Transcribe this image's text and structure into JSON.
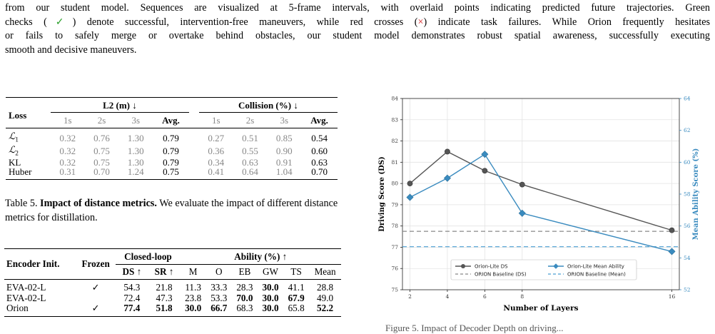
{
  "caption_top": {
    "line1": "from our student model. Sequences are visualized at 5-frame intervals, with overlaid points indicating predicted future trajectories. Green",
    "line2_a": "checks (",
    "check_glyph": "✓",
    "line2_b": ") denote successful, intervention-free maneuvers, while red crosses (",
    "cross_glyph": "×",
    "line2_c": ") indicate task failures. While Orion frequently hesitates",
    "line3": "or fails to safely merge or overtake behind obstacles, our student model demonstrates robust spatial awareness, successfully executing",
    "line4": "smooth and decisive maneuvers.",
    "check_color": "#2ca02c",
    "cross_color": "#d62728"
  },
  "table5": {
    "col_loss": "Loss",
    "group_l2": "L2 (m) ↓",
    "group_collision": "Collision (%) ↓",
    "subcols": [
      "1s",
      "2s",
      "3s",
      "Avg.",
      "1s",
      "2s",
      "3s",
      "Avg."
    ],
    "rows": [
      {
        "loss_sym": "ℒ",
        "loss_sub": "1",
        "vals": [
          "0.32",
          "0.76",
          "1.30",
          "0.79",
          "0.27",
          "0.51",
          "0.85",
          "0.54"
        ]
      },
      {
        "loss_sym": "ℒ",
        "loss_sub": "2",
        "vals": [
          "0.32",
          "0.75",
          "1.30",
          "0.79",
          "0.36",
          "0.55",
          "0.90",
          "0.60"
        ]
      },
      {
        "loss_sym": "KL",
        "loss_sub": "",
        "vals": [
          "0.32",
          "0.75",
          "1.30",
          "0.79",
          "0.34",
          "0.63",
          "0.91",
          "0.63"
        ]
      },
      {
        "loss_sym": "Huber",
        "loss_sub": "",
        "vals": [
          "0.31",
          "0.70",
          "1.24",
          "0.75",
          "0.41",
          "0.64",
          "1.04",
          "0.70"
        ]
      }
    ],
    "caption_label": "Table 5.",
    "caption_bold": "Impact of distance metrics.",
    "caption_rest": " We evaluate the impact of different distance metrics for distillation."
  },
  "table6": {
    "col_encoder": "Encoder Init.",
    "col_frozen": "Frozen",
    "group_closed": "Closed-loop",
    "group_ability": "Ability (%) ↑",
    "subcols": [
      "DS ↑",
      "SR ↑",
      "M",
      "O",
      "EB",
      "GW",
      "TS",
      "Mean"
    ],
    "rows": [
      {
        "encoder": "EVA-02-L",
        "frozen": "✓",
        "vals": [
          "54.3",
          "21.8",
          "11.3",
          "33.3",
          "28.3",
          "30.0",
          "41.1",
          "28.8"
        ],
        "bold": [
          false,
          false,
          false,
          false,
          false,
          true,
          false,
          false
        ]
      },
      {
        "encoder": "EVA-02-L",
        "frozen": "",
        "vals": [
          "72.4",
          "47.3",
          "23.8",
          "53.3",
          "70.0",
          "30.0",
          "67.9",
          "49.0"
        ],
        "bold": [
          false,
          false,
          false,
          false,
          true,
          true,
          true,
          false
        ]
      },
      {
        "encoder": "Orion",
        "frozen": "✓",
        "vals": [
          "77.4",
          "51.8",
          "30.0",
          "66.7",
          "68.3",
          "30.0",
          "65.8",
          "52.2"
        ],
        "bold": [
          true,
          true,
          true,
          true,
          false,
          true,
          false,
          true
        ]
      }
    ]
  },
  "chart_data": {
    "type": "line",
    "xlabel": "Number of Layers",
    "ylabel": "Driving Score (DS)",
    "ylabel_right": "Mean Ability Score (%)",
    "x": [
      2,
      4,
      6,
      8,
      16
    ],
    "x_ticks": [
      "2",
      "4",
      "6",
      "8",
      "16"
    ],
    "ylim": [
      75,
      84
    ],
    "ylim_right": [
      52,
      64
    ],
    "y_ticks": [
      "75",
      "76",
      "77",
      "78",
      "79",
      "80",
      "81",
      "82",
      "83",
      "84"
    ],
    "y_ticks_right": [
      "52",
      "54",
      "56",
      "58",
      "60",
      "62",
      "64"
    ],
    "grid": true,
    "legend_position": "bottom-center",
    "series": [
      {
        "name": "Orion-Lite DS",
        "axis": "left",
        "values": [
          80.0,
          81.5,
          80.6,
          79.95,
          77.8
        ],
        "color": "#555555",
        "marker": "circle"
      },
      {
        "name": "Orion-Lite Mean Ability",
        "axis": "right",
        "values": [
          57.8,
          59.0,
          60.5,
          56.8,
          54.4
        ],
        "color": "#3a8bbf",
        "marker": "diamond"
      }
    ],
    "baselines": [
      {
        "name": "ORION Baseline (DS)",
        "axis": "left",
        "value": 77.75,
        "color": "#888888"
      },
      {
        "name": "ORION Baseline (Mean)",
        "axis": "right",
        "value": 54.7,
        "color": "#4a9fd4"
      }
    ]
  },
  "bottom_caption_fragment": "Figure 5. Impact of Decoder Depth on driving..."
}
